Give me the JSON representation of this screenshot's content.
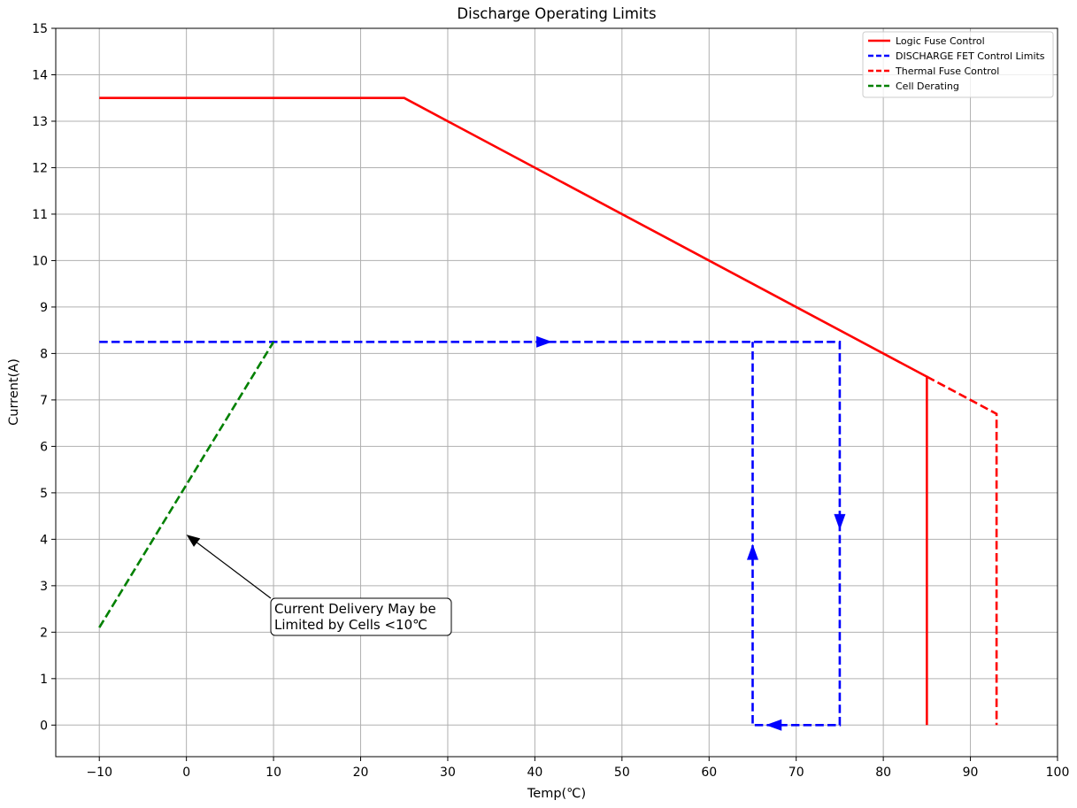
{
  "chart_data": {
    "type": "line",
    "title": "Discharge Operating Limits",
    "xlabel": "Temp(℃)",
    "ylabel": "Current(A)",
    "xlim": [
      -15,
      100
    ],
    "ylim": [
      -0.68,
      15
    ],
    "xticks": [
      -10,
      0,
      10,
      20,
      30,
      40,
      50,
      60,
      70,
      80,
      90,
      100
    ],
    "xtick_labels": [
      "−10",
      "0",
      "10",
      "20",
      "30",
      "40",
      "50",
      "60",
      "70",
      "80",
      "90",
      "100"
    ],
    "yticks": [
      0,
      1,
      2,
      3,
      4,
      5,
      6,
      7,
      8,
      9,
      10,
      11,
      12,
      13,
      14,
      15
    ],
    "ytick_labels": [
      "0",
      "1",
      "2",
      "3",
      "4",
      "5",
      "6",
      "7",
      "8",
      "9",
      "10",
      "11",
      "12",
      "13",
      "14",
      "15"
    ],
    "grid": true,
    "legend_position": "top-right",
    "series": [
      {
        "name": "Logic Fuse Control",
        "color": "#ff0000",
        "style": "solid",
        "points": [
          [
            -10,
            13.5
          ],
          [
            25,
            13.5
          ],
          [
            85,
            7.5
          ],
          [
            85,
            0
          ]
        ]
      },
      {
        "name": "DISCHARGE FET Control Limits",
        "color": "#0000ff",
        "style": "dashed",
        "points": [
          [
            -10,
            8.25
          ],
          [
            75,
            8.25
          ],
          [
            75,
            0
          ],
          [
            65,
            0
          ],
          [
            65,
            8.25
          ]
        ]
      },
      {
        "name": "Thermal Fuse Control",
        "color": "#ff0000",
        "style": "dashed",
        "points": [
          [
            85,
            7.5
          ],
          [
            93,
            6.7
          ],
          [
            93,
            0
          ]
        ]
      },
      {
        "name": "Cell Derating",
        "color": "#008000",
        "style": "dashed",
        "points": [
          [
            -10,
            2.1
          ],
          [
            10,
            8.25
          ]
        ]
      }
    ],
    "arrows": [
      {
        "x": 42,
        "y": 8.25,
        "direction": "right",
        "color": "#0000ff"
      },
      {
        "x": 75,
        "y": 4.2,
        "direction": "down",
        "color": "#0000ff"
      },
      {
        "x": 66.5,
        "y": 0,
        "direction": "left",
        "color": "#0000ff"
      },
      {
        "x": 65,
        "y": 3.9,
        "direction": "up",
        "color": "#0000ff"
      }
    ],
    "annotation": {
      "text_lines": [
        "Current Delivery May be",
        "Limited by Cells <10℃"
      ],
      "xy": [
        0,
        4.1
      ],
      "xytext": [
        10,
        2.5
      ]
    }
  }
}
